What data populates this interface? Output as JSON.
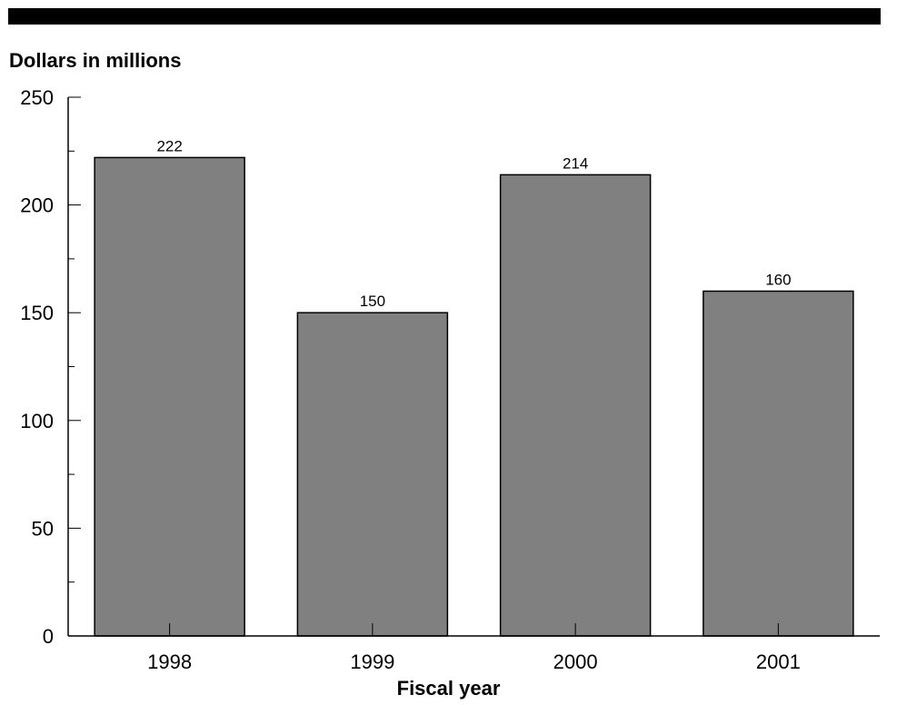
{
  "chart_data": {
    "type": "bar",
    "title": "",
    "ylabel": "Dollars in millions",
    "xlabel": "Fiscal year",
    "categories": [
      "1998",
      "1999",
      "2000",
      "2001"
    ],
    "values": [
      222,
      150,
      214,
      160
    ],
    "data_labels": [
      "222",
      "150",
      "214",
      "160"
    ],
    "ylim": [
      0,
      250
    ],
    "yticks": [
      "0",
      "50",
      "100",
      "150",
      "200",
      "250"
    ],
    "grid": false,
    "bar_color": "#808080"
  }
}
